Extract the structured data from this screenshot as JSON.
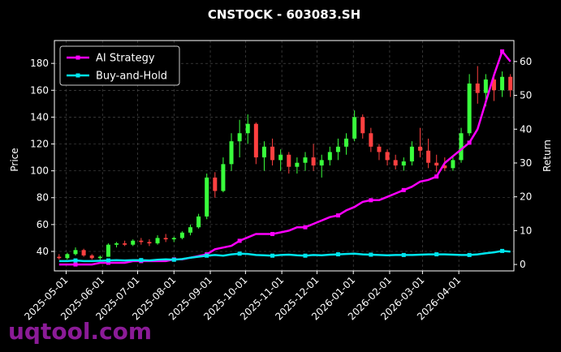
{
  "chart_data": {
    "type": "candlestick",
    "title": "CNSTOCK - 603083.SH",
    "y_label": "Price",
    "y2_label": "Return",
    "watermark": "uqtool.com",
    "x": [
      "2025-04-25",
      "2025-05-02",
      "2025-05-09",
      "2025-05-16",
      "2025-05-23",
      "2025-05-30",
      "2025-06-06",
      "2025-06-13",
      "2025-06-20",
      "2025-06-27",
      "2025-07-04",
      "2025-07-11",
      "2025-07-18",
      "2025-07-25",
      "2025-08-01",
      "2025-08-08",
      "2025-08-15",
      "2025-08-22",
      "2025-08-29",
      "2025-09-05",
      "2025-09-12",
      "2025-09-19",
      "2025-09-26",
      "2025-10-03",
      "2025-10-10",
      "2025-10-17",
      "2025-10-24",
      "2025-10-31",
      "2025-11-07",
      "2025-11-14",
      "2025-11-21",
      "2025-11-28",
      "2025-12-05",
      "2025-12-12",
      "2025-12-19",
      "2025-12-26",
      "2026-01-02",
      "2026-01-09",
      "2026-01-16",
      "2026-01-23",
      "2026-01-30",
      "2026-02-06",
      "2026-02-13",
      "2026-02-20",
      "2026-02-27",
      "2026-03-06",
      "2026-03-13",
      "2026-03-20",
      "2026-03-27",
      "2026-04-03",
      "2026-04-10",
      "2026-04-17",
      "2026-04-24",
      "2026-05-01",
      "2026-05-08",
      "2026-05-15"
    ],
    "open": [
      36,
      35,
      38,
      41,
      37,
      35,
      36,
      45,
      46,
      45,
      48,
      47,
      46,
      50,
      49,
      50,
      54,
      58,
      66,
      95,
      85,
      105,
      122,
      128,
      135,
      110,
      118,
      108,
      112,
      103,
      106,
      110,
      104,
      108,
      114,
      118,
      124,
      140,
      128,
      118,
      114,
      108,
      104,
      107,
      118,
      115,
      106,
      104,
      102,
      108,
      128,
      165,
      158,
      168,
      160,
      170
    ],
    "high": [
      38,
      39,
      43,
      42,
      38,
      37,
      46,
      47,
      48,
      49,
      50,
      49,
      52,
      53,
      51,
      55,
      60,
      68,
      98,
      99,
      110,
      128,
      138,
      142,
      136,
      122,
      124,
      116,
      114,
      110,
      114,
      120,
      112,
      118,
      124,
      128,
      145,
      142,
      132,
      120,
      116,
      112,
      110,
      122,
      132,
      124,
      112,
      110,
      110,
      132,
      172,
      178,
      172,
      170,
      174,
      172
    ],
    "low": [
      34,
      34,
      37,
      36,
      34,
      33,
      36,
      43,
      44,
      44,
      45,
      44,
      45,
      47,
      47,
      49,
      52,
      57,
      64,
      80,
      84,
      100,
      110,
      120,
      105,
      100,
      104,
      100,
      98,
      98,
      100,
      100,
      95,
      104,
      108,
      112,
      122,
      124,
      114,
      108,
      104,
      101,
      100,
      104,
      110,
      102,
      99,
      100,
      100,
      106,
      126,
      150,
      148,
      152,
      155,
      155
    ],
    "close": [
      35,
      38,
      41,
      37,
      35,
      36,
      45,
      46,
      45,
      48,
      47,
      46,
      50,
      49,
      50,
      54,
      58,
      66,
      95,
      85,
      105,
      122,
      128,
      135,
      110,
      118,
      108,
      112,
      103,
      106,
      110,
      104,
      108,
      114,
      118,
      124,
      140,
      128,
      118,
      114,
      108,
      104,
      107,
      118,
      115,
      106,
      104,
      102,
      108,
      128,
      165,
      158,
      168,
      160,
      170,
      160
    ],
    "up_color": "#39ff3c",
    "down_color": "#ff4040",
    "series": [
      {
        "name": "AI Strategy",
        "color": "#ff00ff",
        "axis": "y2",
        "values": [
          0,
          0,
          0,
          0,
          0,
          0.5,
          0.5,
          0.5,
          0.5,
          1,
          1,
          1,
          1,
          1,
          1.5,
          1.5,
          2,
          2.5,
          3,
          4.5,
          5,
          5.5,
          7,
          8,
          9,
          9,
          9,
          9.5,
          10,
          11,
          11,
          12,
          13,
          14,
          14.5,
          16,
          17,
          18.5,
          19,
          19,
          20,
          21,
          22,
          23,
          24.5,
          25,
          26,
          30,
          32,
          34,
          36,
          40,
          48,
          56,
          63,
          60
        ]
      },
      {
        "name": "Buy-and-Hold",
        "color": "#00e5ee",
        "axis": "y2",
        "values": [
          1,
          1,
          1.2,
          1,
          1,
          1.1,
          1.2,
          1.3,
          1.2,
          1.3,
          1.3,
          1.2,
          1.4,
          1.5,
          1.4,
          1.6,
          2,
          2.3,
          2.6,
          2.8,
          2.6,
          3,
          3.2,
          3.1,
          2.8,
          2.7,
          2.6,
          2.8,
          2.9,
          2.7,
          2.6,
          2.8,
          2.7,
          2.9,
          3,
          3.1,
          3.2,
          3,
          2.9,
          2.8,
          2.7,
          2.8,
          2.8,
          2.8,
          2.9,
          3,
          3,
          3,
          2.9,
          2.8,
          2.8,
          3,
          3.3,
          3.6,
          4,
          3.8
        ]
      }
    ],
    "xlim": [
      "2025-04-21",
      "2026-05-18"
    ],
    "xticks": [
      "2025-05-01",
      "2025-06-01",
      "2025-07-01",
      "2025-08-01",
      "2025-09-01",
      "2025-10-01",
      "2025-11-01",
      "2025-12-01",
      "2026-01-01",
      "2026-02-01",
      "2026-03-01",
      "2026-04-01"
    ],
    "ylim": [
      25.5,
      197
    ],
    "yticks": [
      40,
      60,
      80,
      100,
      120,
      140,
      160,
      180
    ],
    "y2lim": [
      -1.9,
      66.2
    ],
    "y2ticks": [
      0,
      10,
      20,
      30,
      40,
      50,
      60
    ],
    "grid": true,
    "legend": "upper left"
  }
}
